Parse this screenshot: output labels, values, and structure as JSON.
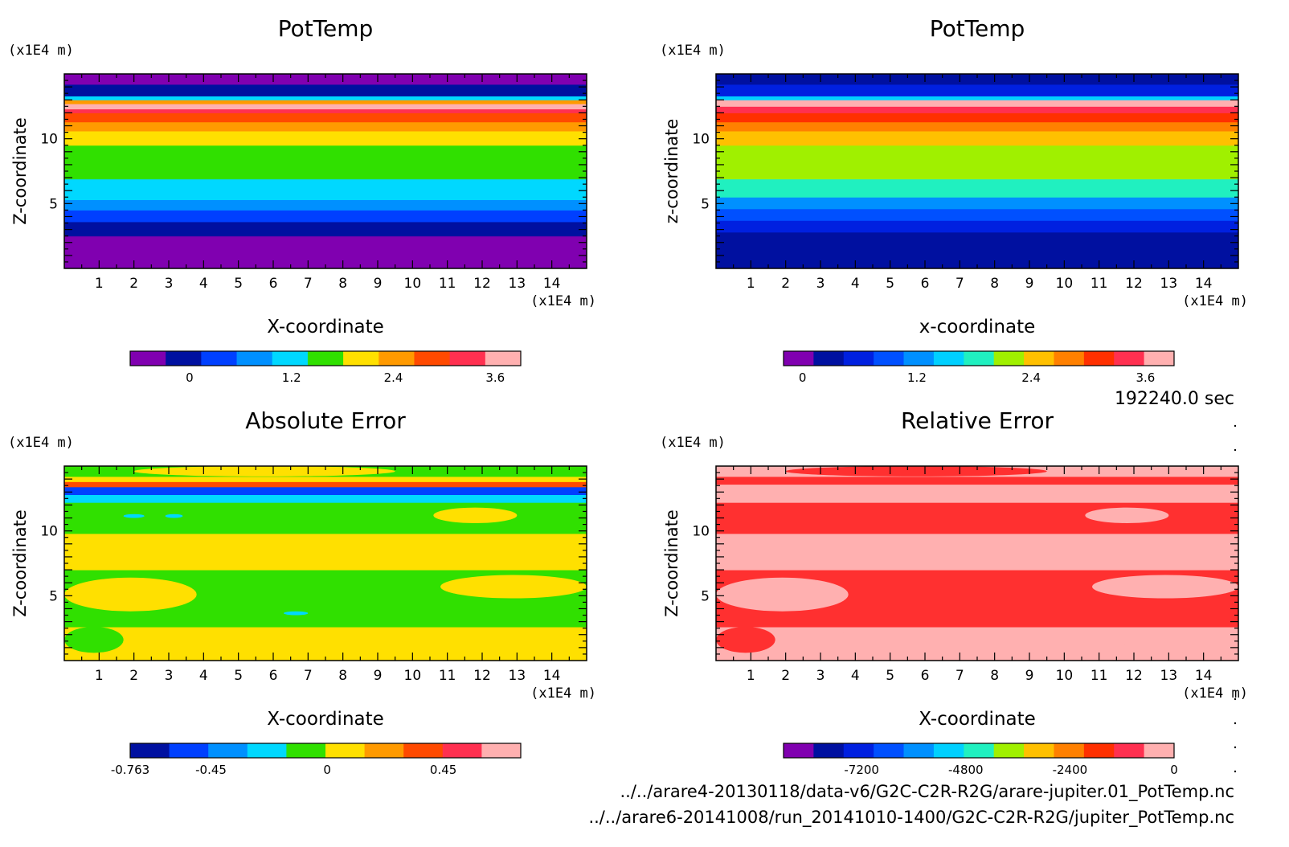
{
  "time_label": "192240.0 sec",
  "footer": {
    "file1": "../../arare4-20130118/data-v6/G2C-C2R-R2G/arare-jupiter.01_PotTemp.nc",
    "file2": "../../arare6-20141008/run_20141010-1400/G2C-C2R-R2G/jupiter_PotTemp.nc"
  },
  "chart_data": [
    {
      "type": "heatmap",
      "title": "PotTemp",
      "xlabel": "X-coordinate",
      "ylabel": "Z-coordinate",
      "x_unit": "(x1E4 m)",
      "y_unit": "(x1E4 m)",
      "xlim": [
        0,
        15
      ],
      "ylim": [
        0,
        15
      ],
      "x_ticks": [
        1,
        2,
        3,
        4,
        5,
        6,
        7,
        8,
        9,
        10,
        11,
        12,
        13,
        14
      ],
      "y_ticks": [
        5,
        10
      ],
      "colorbar": {
        "colors": [
          "#8000b0",
          "#0010a0",
          "#0040ff",
          "#0090ff",
          "#00d8ff",
          "#30e000",
          "#ffe000",
          "#ff9a00",
          "#ff4a00",
          "#ff3050",
          "#ffb0b0"
        ],
        "range": [
          -0.7,
          3.9
        ],
        "tick_values": [
          0,
          1.2,
          2.4,
          3.6
        ],
        "tick_labels": [
          "0",
          "1.2",
          "2.4",
          "3.6"
        ]
      },
      "bands": [
        {
          "z": [
            0,
            2.5
          ],
          "color": "#8000b0"
        },
        {
          "z": [
            2.5,
            3.6
          ],
          "color": "#0010a0"
        },
        {
          "z": [
            3.6,
            4.5
          ],
          "color": "#0040ff"
        },
        {
          "z": [
            4.5,
            5.3
          ],
          "color": "#0090ff"
        },
        {
          "z": [
            5.3,
            6.9
          ],
          "color": "#00d8ff"
        },
        {
          "z": [
            6.9,
            9.5
          ],
          "color": "#30e000"
        },
        {
          "z": [
            9.5,
            10.6
          ],
          "color": "#ffe000"
        },
        {
          "z": [
            10.6,
            11.3
          ],
          "color": "#ff9a00"
        },
        {
          "z": [
            11.3,
            12.0
          ],
          "color": "#ff4a00"
        },
        {
          "z": [
            12.0,
            12.3
          ],
          "color": "#ff3050"
        },
        {
          "z": [
            12.3,
            12.7
          ],
          "color": "#ffb0b0"
        },
        {
          "z": [
            12.7,
            13.0
          ],
          "color": "#ff9a00"
        },
        {
          "z": [
            13.0,
            13.3
          ],
          "color": "#00d8ff"
        },
        {
          "z": [
            13.3,
            14.2
          ],
          "color": "#0010a0"
        },
        {
          "z": [
            14.2,
            15.0
          ],
          "color": "#8000b0"
        }
      ]
    },
    {
      "type": "heatmap",
      "title": "PotTemp",
      "xlabel": "x-coordinate",
      "ylabel": "z-coordinate",
      "x_unit": "(x1E4 m)",
      "y_unit": "(x1E4 m)",
      "xlim": [
        0,
        15
      ],
      "ylim": [
        0,
        15
      ],
      "x_ticks": [
        1,
        2,
        3,
        4,
        5,
        6,
        7,
        8,
        9,
        10,
        11,
        12,
        13,
        14
      ],
      "y_ticks": [
        5,
        10
      ],
      "colorbar": {
        "colors": [
          "#8000b0",
          "#0010a0",
          "#0020e0",
          "#0050ff",
          "#0090ff",
          "#00d0ff",
          "#20f0c0",
          "#a0f000",
          "#ffc000",
          "#ff8000",
          "#ff3000",
          "#ff3050",
          "#ffb0b0"
        ],
        "range": [
          -0.2,
          3.9
        ],
        "tick_values": [
          0,
          1.2,
          2.4,
          3.6
        ],
        "tick_labels": [
          "0",
          "1.2",
          "2.4",
          "3.6"
        ]
      },
      "bands": [
        {
          "z": [
            0,
            2.8
          ],
          "color": "#0010a0"
        },
        {
          "z": [
            2.8,
            3.7
          ],
          "color": "#0020e0"
        },
        {
          "z": [
            3.7,
            4.6
          ],
          "color": "#0050ff"
        },
        {
          "z": [
            4.6,
            5.5
          ],
          "color": "#0090ff"
        },
        {
          "z": [
            5.5,
            6.9
          ],
          "color": "#20f0c0"
        },
        {
          "z": [
            6.9,
            9.5
          ],
          "color": "#a0f000"
        },
        {
          "z": [
            9.5,
            10.6
          ],
          "color": "#ffc000"
        },
        {
          "z": [
            10.6,
            11.3
          ],
          "color": "#ff8000"
        },
        {
          "z": [
            11.3,
            12.0
          ],
          "color": "#ff3000"
        },
        {
          "z": [
            12.0,
            12.5
          ],
          "color": "#ff3050"
        },
        {
          "z": [
            12.5,
            13.0
          ],
          "color": "#ffb0b0"
        },
        {
          "z": [
            13.0,
            13.3
          ],
          "color": "#00d0ff"
        },
        {
          "z": [
            13.3,
            14.2
          ],
          "color": "#0020e0"
        },
        {
          "z": [
            14.2,
            15.0
          ],
          "color": "#0010a0"
        }
      ]
    },
    {
      "type": "heatmap",
      "title": "Absolute Error",
      "xlabel": "X-coordinate",
      "ylabel": "Z-coordinate",
      "x_unit": "(x1E4 m)",
      "y_unit": "(x1E4 m)",
      "xlim": [
        0,
        15
      ],
      "ylim": [
        0,
        15
      ],
      "x_ticks": [
        1,
        2,
        3,
        4,
        5,
        6,
        7,
        8,
        9,
        10,
        11,
        12,
        13,
        14
      ],
      "y_ticks": [
        5,
        10
      ],
      "colorbar": {
        "colors": [
          "#0010a0",
          "#0040ff",
          "#0090ff",
          "#00d8ff",
          "#30e000",
          "#ffe000",
          "#ff9a00",
          "#ff4a00",
          "#ff3050",
          "#ffb0b0"
        ],
        "range": [
          -0.763,
          0.75
        ],
        "tick_values": [
          -0.763,
          -0.45,
          0,
          0.45
        ],
        "tick_labels": [
          "-0.763",
          "-0.45",
          "0",
          "0.45"
        ]
      },
      "bands": [
        {
          "z": [
            0,
            2.6
          ],
          "color": "#ffe000"
        },
        {
          "z": [
            2.6,
            7.0
          ],
          "color": "#30e000"
        },
        {
          "z": [
            7.0,
            9.8
          ],
          "color": "#ffe000"
        },
        {
          "z": [
            9.8,
            12.2
          ],
          "color": "#30e000"
        },
        {
          "z": [
            12.2,
            12.8
          ],
          "color": "#00d8ff"
        },
        {
          "z": [
            12.8,
            13.4
          ],
          "color": "#0040ff"
        },
        {
          "z": [
            13.4,
            13.8
          ],
          "color": "#ff4a00"
        },
        {
          "z": [
            13.8,
            14.2
          ],
          "color": "#ffe000"
        },
        {
          "z": [
            14.2,
            15.0
          ],
          "color": "#30e000"
        }
      ],
      "patches": [
        {
          "x": [
            0,
            1.7
          ],
          "z": [
            0.6,
            2.6
          ],
          "color": "#30e000"
        },
        {
          "x": [
            1.8,
            4.2
          ],
          "z": [
            0.3,
            2.3
          ],
          "color": "#ffe000"
        },
        {
          "x": [
            4.4,
            6.2
          ],
          "z": [
            0.6,
            2.0
          ],
          "color": "#ffe000"
        },
        {
          "x": [
            7.0,
            9.0
          ],
          "z": [
            0.4,
            2.4
          ],
          "color": "#ffe000"
        },
        {
          "x": [
            10.2,
            11.8
          ],
          "z": [
            0.8,
            2.4
          ],
          "color": "#ffe000"
        },
        {
          "x": [
            12.2,
            13.6
          ],
          "z": [
            0.3,
            2.2
          ],
          "color": "#ffe000"
        },
        {
          "x": [
            0,
            3.8
          ],
          "z": [
            3.8,
            6.4
          ],
          "color": "#ffe000"
        },
        {
          "x": [
            10.8,
            15.0
          ],
          "z": [
            4.8,
            6.6
          ],
          "color": "#ffe000"
        },
        {
          "x": [
            6.3,
            7.0
          ],
          "z": [
            3.5,
            3.8
          ],
          "color": "#00d8ff"
        },
        {
          "x": [
            10.6,
            13.0
          ],
          "z": [
            10.6,
            11.8
          ],
          "color": "#ffe000"
        },
        {
          "x": [
            1.7,
            2.3
          ],
          "z": [
            11.0,
            11.3
          ],
          "color": "#00d8ff"
        },
        {
          "x": [
            2.9,
            3.4
          ],
          "z": [
            11.0,
            11.3
          ],
          "color": "#00d8ff"
        },
        {
          "x": [
            2.0,
            9.5
          ],
          "z": [
            14.2,
            15.0
          ],
          "color": "#ffe000"
        }
      ]
    },
    {
      "type": "heatmap",
      "title": "Relative Error",
      "xlabel": "X-coordinate",
      "ylabel": "Z-coordinate",
      "x_unit": "(x1E4 m)",
      "y_unit": "(x1E4 m)",
      "xlim": [
        0,
        15
      ],
      "ylim": [
        0,
        15
      ],
      "x_ticks": [
        1,
        2,
        3,
        4,
        5,
        6,
        7,
        8,
        9,
        10,
        11,
        12,
        13,
        14
      ],
      "y_ticks": [
        5,
        10
      ],
      "colorbar": {
        "colors": [
          "#8000b0",
          "#0010a0",
          "#0020e0",
          "#0050ff",
          "#0090ff",
          "#00d0ff",
          "#20f0c0",
          "#a0f000",
          "#ffc000",
          "#ff8000",
          "#ff3000",
          "#ff3050",
          "#ffb0b0"
        ],
        "range": [
          -9000,
          0
        ],
        "tick_values": [
          -7200,
          -4800,
          -2400,
          0
        ],
        "tick_labels": [
          "-7200",
          "-4800",
          "-2400",
          "0"
        ]
      },
      "bands": [
        {
          "z": [
            0,
            2.6
          ],
          "color": "#ffb0b0"
        },
        {
          "z": [
            2.6,
            7.0
          ],
          "color": "#ff3030"
        },
        {
          "z": [
            7.0,
            9.8
          ],
          "color": "#ffb0b0"
        },
        {
          "z": [
            9.8,
            12.2
          ],
          "color": "#ff3030"
        },
        {
          "z": [
            12.2,
            13.6
          ],
          "color": "#ffb0b0"
        },
        {
          "z": [
            13.6,
            14.2
          ],
          "color": "#ff3030"
        },
        {
          "z": [
            14.2,
            15.0
          ],
          "color": "#ffb0b0"
        }
      ],
      "patches": [
        {
          "x": [
            0,
            1.7
          ],
          "z": [
            0.6,
            2.6
          ],
          "color": "#ff3030"
        },
        {
          "x": [
            1.8,
            4.2
          ],
          "z": [
            0.3,
            2.3
          ],
          "color": "#ffb0b0"
        },
        {
          "x": [
            4.4,
            6.2
          ],
          "z": [
            0.6,
            2.0
          ],
          "color": "#ffb0b0"
        },
        {
          "x": [
            7.0,
            9.0
          ],
          "z": [
            0.4,
            2.4
          ],
          "color": "#ffb0b0"
        },
        {
          "x": [
            10.2,
            11.8
          ],
          "z": [
            0.8,
            2.4
          ],
          "color": "#ffb0b0"
        },
        {
          "x": [
            12.2,
            13.6
          ],
          "z": [
            0.3,
            2.2
          ],
          "color": "#ffb0b0"
        },
        {
          "x": [
            0,
            3.8
          ],
          "z": [
            3.8,
            6.4
          ],
          "color": "#ffb0b0"
        },
        {
          "x": [
            10.8,
            15.0
          ],
          "z": [
            4.8,
            6.6
          ],
          "color": "#ffb0b0"
        },
        {
          "x": [
            10.6,
            13.0
          ],
          "z": [
            10.6,
            11.8
          ],
          "color": "#ffb0b0"
        },
        {
          "x": [
            2.0,
            9.5
          ],
          "z": [
            14.2,
            15.0
          ],
          "color": "#ff3030"
        }
      ]
    }
  ]
}
